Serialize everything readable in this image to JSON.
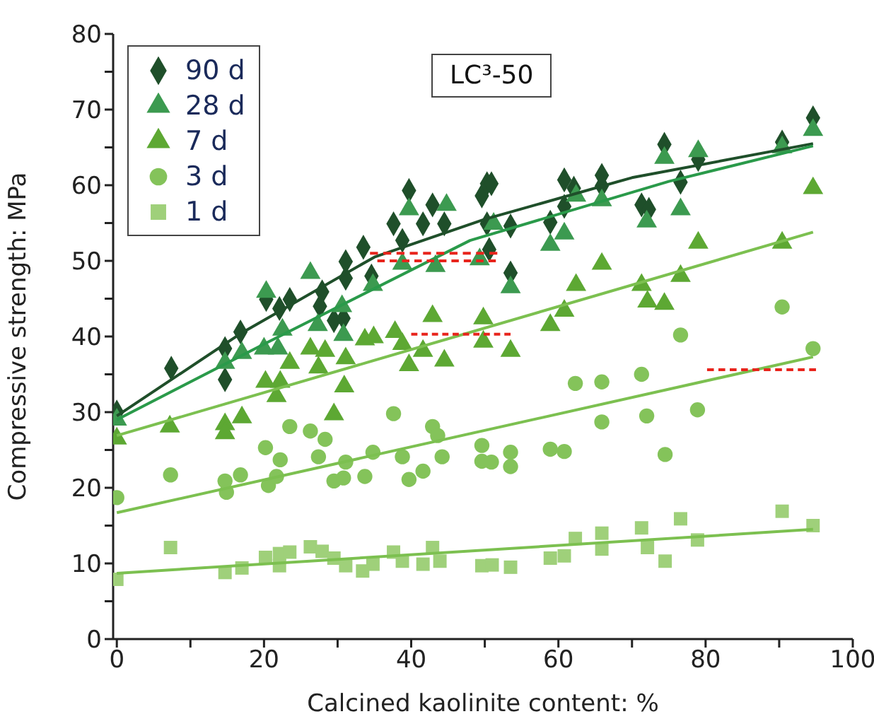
{
  "chart_data": {
    "type": "scatter",
    "xlabel": "Calcined kaolinite content: %",
    "ylabel": "Compressive strength: MPa",
    "annotations": [
      "LC³-50"
    ],
    "xlim": [
      -0.5,
      100
    ],
    "xticks": [
      0,
      {
        "value": 10,
        "label": null
      },
      20,
      {
        "value": 30,
        "label": null
      },
      40,
      {
        "value": 50,
        "label": null
      },
      60,
      {
        "value": 70,
        "label": null
      },
      80,
      {
        "value": 90,
        "label": null
      },
      100
    ],
    "ylim": [
      0,
      80
    ],
    "yticks": [
      0,
      {
        "value": 5,
        "label": null
      },
      10,
      {
        "value": 15,
        "label": null
      },
      20,
      {
        "value": 25,
        "label": null
      },
      30,
      {
        "value": 35,
        "label": null
      },
      40,
      {
        "value": 45,
        "label": null
      },
      50,
      {
        "value": 55,
        "label": null
      },
      60,
      {
        "value": 65,
        "label": null
      },
      70,
      {
        "value": 75,
        "label": null
      },
      80
    ],
    "legend": "top left",
    "series": [
      {
        "name": "90 d",
        "marker": "diamond",
        "color": "#1f4f2a",
        "x": [
          0,
          7.4,
          14.7,
          14.7,
          16.8,
          20.3,
          22.1,
          23.5,
          27.9,
          27.6,
          29.5,
          30.8,
          31.1,
          31.1,
          33.5,
          34.6,
          37.6,
          38.8,
          39.7,
          42.9,
          41.6,
          44.5,
          49.6,
          50.3,
          50.3,
          50.6,
          50.9,
          53.5,
          53.5,
          58.9,
          60.8,
          62.1,
          60.8,
          65.9,
          65.9,
          71.3,
          72.3,
          74.4,
          76.6,
          79.0,
          90.4,
          94.6
        ],
        "values": [
          30,
          35.8,
          38.4,
          34.3,
          40.6,
          44.9,
          43.7,
          44.9,
          45.9,
          44.0,
          42.1,
          42.4,
          47.7,
          49.9,
          51.8,
          48.0,
          54.9,
          52.7,
          59.3,
          57.4,
          54.9,
          54.9,
          58.6,
          60.2,
          54.9,
          51.5,
          60.2,
          54.6,
          48.4,
          55.1,
          60.7,
          59.6,
          57.2,
          61.3,
          59.9,
          57.4,
          56.8,
          65.4,
          60.4,
          63.4,
          65.7,
          68.9
        ]
      },
      {
        "name": "28 d",
        "marker": "triangle",
        "color": "#3c9a50",
        "x": [
          0,
          14.7,
          17.0,
          20.3,
          20.0,
          21.9,
          22.5,
          26.3,
          27.3,
          30.8,
          30.6,
          34.8,
          39.7,
          38.8,
          43.3,
          44.8,
          49.3,
          51.2,
          53.5,
          58.9,
          60.8,
          62.4,
          65.9,
          72.0,
          74.4,
          76.6,
          79.0,
          90.4,
          94.6
        ],
        "values": [
          29,
          36.5,
          37.8,
          45.9,
          38.4,
          38.4,
          40.9,
          48.4,
          41.5,
          40.2,
          44.0,
          46.8,
          56.8,
          49.6,
          49.3,
          57.4,
          50.2,
          54.9,
          46.5,
          52.1,
          53.6,
          58.6,
          58.0,
          55.2,
          63.6,
          56.8,
          64.5,
          65,
          67.3
        ]
      },
      {
        "name": "7 d",
        "marker": "triangle",
        "color": "#5da833",
        "x": [
          0,
          7.2,
          14.7,
          14.7,
          17.0,
          20.2,
          22.2,
          21.7,
          23.5,
          26.3,
          28.3,
          27.4,
          29.5,
          31.1,
          30.9,
          33.7,
          34.9,
          37.8,
          38.8,
          39.7,
          42.9,
          41.6,
          44.5,
          49.8,
          49.8,
          53.5,
          58.9,
          60.8,
          62.4,
          65.9,
          71.3,
          72.1,
          74.4,
          76.6,
          79.0,
          90.4,
          94.6
        ],
        "values": [
          26.5,
          28.1,
          28.4,
          27.2,
          29.3,
          34.0,
          34.0,
          32.1,
          36.5,
          38.4,
          38.1,
          35.9,
          29.7,
          37.1,
          33.4,
          39.6,
          39.9,
          40.6,
          39.0,
          36.2,
          42.7,
          38.1,
          36.8,
          42.4,
          39.3,
          38.1,
          41.5,
          43.4,
          46.8,
          49.6,
          46.8,
          44.6,
          44.3,
          48.0,
          52.4,
          52.4,
          59.6
        ]
      },
      {
        "name": "3 d",
        "marker": "circle",
        "color": "#84c35a",
        "x": [
          0,
          7.3,
          14.7,
          14.9,
          16.8,
          20.2,
          20.6,
          21.7,
          22.2,
          23.5,
          26.3,
          28.3,
          27.4,
          29.5,
          30.8,
          31.1,
          33.7,
          34.8,
          37.6,
          38.8,
          39.7,
          41.6,
          42.9,
          43.6,
          44.2,
          49.6,
          49.6,
          50.9,
          53.5,
          53.5,
          58.9,
          60.8,
          62.3,
          65.9,
          65.9,
          71.3,
          72.0,
          74.5,
          76.6,
          78.9,
          90.4,
          94.6
        ],
        "values": [
          18.7,
          21.7,
          20.9,
          19.4,
          21.7,
          25.3,
          20.3,
          21.5,
          23.7,
          28.1,
          27.5,
          26.4,
          24.1,
          20.9,
          21.3,
          23.4,
          21.5,
          24.7,
          29.8,
          24.1,
          21.1,
          22.2,
          28.1,
          26.9,
          24.1,
          25.6,
          23.5,
          23.4,
          24.7,
          22.8,
          25.1,
          24.8,
          33.8,
          34.0,
          28.7,
          35.0,
          29.5,
          24.4,
          40.2,
          30.3,
          43.9,
          38.4
        ]
      },
      {
        "name": "1 d",
        "marker": "square",
        "color": "#9fd07a",
        "x": [
          0,
          7.3,
          14.7,
          17.0,
          20.2,
          22.1,
          22.1,
          23.5,
          26.3,
          27.9,
          29.5,
          31.1,
          33.4,
          34.8,
          37.6,
          38.8,
          41.6,
          42.9,
          43.9,
          49.6,
          51.0,
          53.5,
          58.9,
          60.8,
          62.3,
          65.9,
          65.9,
          71.3,
          72.1,
          74.5,
          76.6,
          78.9,
          90.4,
          94.6
        ],
        "values": [
          7.9,
          12.1,
          8.8,
          9.4,
          10.8,
          11.3,
          9.7,
          11.5,
          12.2,
          11.6,
          10.7,
          9.7,
          9.0,
          9.9,
          11.5,
          10.3,
          9.9,
          12.1,
          10.3,
          9.7,
          9.8,
          9.5,
          10.7,
          11.0,
          13.3,
          14.0,
          11.9,
          14.7,
          12.1,
          10.3,
          15.9,
          13.1,
          16.9,
          15.0
        ]
      },
      {
        "type": "line",
        "color": "#1f4f2a",
        "line_style": "solid",
        "x": [
          0,
          17,
          35,
          50,
          70,
          94.6
        ],
        "values": [
          29.5,
          40.5,
          50.5,
          55.5,
          61,
          65.5
        ]
      },
      {
        "type": "line",
        "color": "#2a9a4a",
        "line_style": "solid",
        "x": [
          0,
          20,
          48,
          75,
          94.6
        ],
        "values": [
          29,
          39,
          52.7,
          60.5,
          65.2
        ]
      },
      {
        "type": "line",
        "color": "#7cc050",
        "line_style": "solid",
        "x": [
          0,
          94.6
        ],
        "values": [
          26.9,
          53.8
        ]
      },
      {
        "type": "line",
        "color": "#7cc050",
        "line_style": "solid",
        "x": [
          0,
          94.6
        ],
        "values": [
          16.7,
          37.3
        ]
      },
      {
        "type": "line",
        "color": "#7cc050",
        "line_style": "solid",
        "x": [
          0,
          94.6
        ],
        "values": [
          8.7,
          14.5
        ]
      },
      {
        "type": "line",
        "color": "#e8241c",
        "line_style": "dashed",
        "x": [
          34.4,
          51.7
        ],
        "values": [
          51,
          51
        ]
      },
      {
        "type": "line",
        "color": "#e8241c",
        "line_style": "dashed",
        "x": [
          35.4,
          51.5
        ],
        "values": [
          50,
          50
        ]
      },
      {
        "type": "line",
        "color": "#e8241c",
        "line_style": "dashed",
        "x": [
          40,
          53.5
        ],
        "values": [
          40.3,
          40.3
        ]
      },
      {
        "type": "line",
        "color": "#e8241c",
        "line_style": "dashed",
        "x": [
          80.2,
          95
        ],
        "values": [
          35.6,
          35.6
        ]
      }
    ]
  }
}
